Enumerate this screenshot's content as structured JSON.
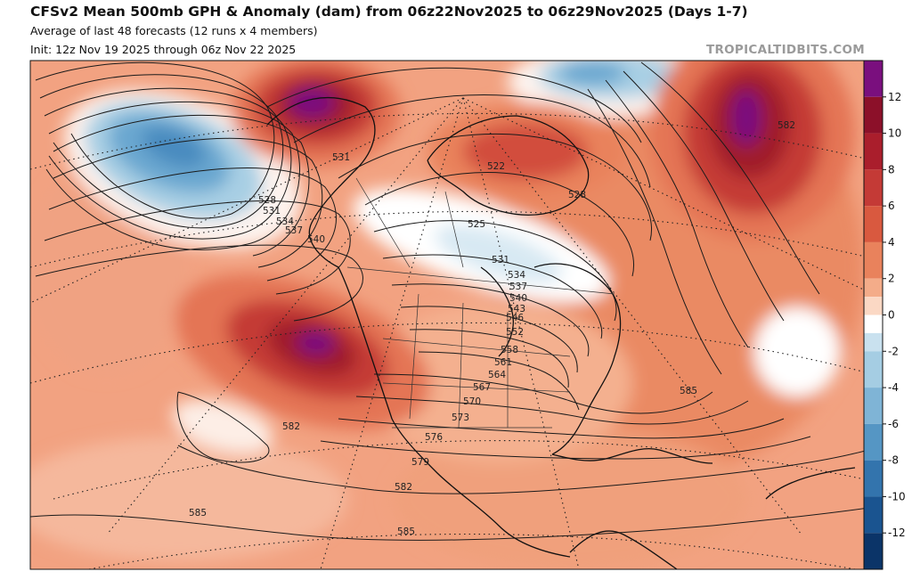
{
  "header": {
    "title": "CFSv2 Mean 500mb GPH & Anomaly (dam) from 06z22Nov2025 to 06z29Nov2025 (Days 1-7)",
    "subtitle": "Average of last 48 forecasts (12 runs x 4 members)",
    "init": "Init: 12z Nov 19 2025 through 06z Nov 22 2025",
    "brand": "TROPICALTIDBITS.COM"
  },
  "colorbar": {
    "levels": [
      {
        "value": 14,
        "color": "#7a0f7e"
      },
      {
        "value": 12,
        "color": "#8c1029"
      },
      {
        "value": 10,
        "color": "#aa1e2c"
      },
      {
        "value": 8,
        "color": "#c43a36"
      },
      {
        "value": 6,
        "color": "#d9593f"
      },
      {
        "value": 4,
        "color": "#e9825c"
      },
      {
        "value": 2,
        "color": "#f4ac89"
      },
      {
        "value": 1,
        "color": "#fbd8c4"
      },
      {
        "value": 0,
        "color": "#ffffff"
      },
      {
        "value": -1,
        "color": "#c9e1ef"
      },
      {
        "value": -2,
        "color": "#a5cde3"
      },
      {
        "value": -4,
        "color": "#7fb4d6"
      },
      {
        "value": -6,
        "color": "#5596c4"
      },
      {
        "value": -8,
        "color": "#3374ad"
      },
      {
        "value": -10,
        "color": "#1a5490"
      },
      {
        "value": -12,
        "color": "#0b3468"
      },
      {
        "value": -14,
        "color": "#061d44"
      }
    ],
    "tick_labels": [
      "12",
      "10",
      "8",
      "6",
      "4",
      "2",
      "0",
      "-2",
      "-4",
      "-6",
      "-8",
      "-10",
      "-12"
    ]
  },
  "map": {
    "contour_labels": [
      "531",
      "528",
      "531",
      "534",
      "537",
      "540",
      "525",
      "522",
      "528",
      "531",
      "534",
      "537",
      "540",
      "543",
      "546",
      "552",
      "558",
      "561",
      "564",
      "567",
      "570",
      "573",
      "576",
      "579",
      "582",
      "582",
      "585",
      "585",
      "582",
      "585"
    ],
    "anomaly_centers": [
      {
        "kind": "positive",
        "region": "Alaska / Bering",
        "max_dam": 14
      },
      {
        "kind": "positive",
        "region": "North Atlantic / Greenland east",
        "max_dam": 14
      },
      {
        "kind": "positive",
        "region": "US West Coast",
        "max_dam": 14
      },
      {
        "kind": "positive",
        "region": "Canadian Arctic Archipelago",
        "max_dam": 10
      },
      {
        "kind": "negative",
        "region": "Gulf of Alaska / NE Pacific",
        "min_dam": -8
      },
      {
        "kind": "negative",
        "region": "Hudson Bay / Eastern Canada",
        "min_dam": -2
      },
      {
        "kind": "negative",
        "region": "Arctic Ocean",
        "min_dam": -6
      },
      {
        "kind": "negative",
        "region": "Western Atlantic",
        "min_dam": -2
      },
      {
        "kind": "negative",
        "region": "Subtropical Pacific",
        "min_dam": -1
      }
    ]
  }
}
